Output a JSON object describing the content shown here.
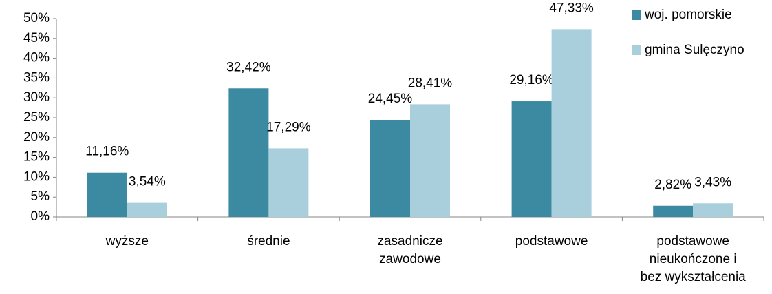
{
  "chart_data": {
    "type": "bar",
    "categories": [
      "wyższe",
      "średnie",
      "zasadnicze\nzawodowe",
      "podstawowe",
      "podstawowe\nnieukończone i\nbez wykształcenia"
    ],
    "series": [
      {
        "name": "woj. pomorskie",
        "color": "#3b8aa1",
        "values": [
          11.16,
          32.42,
          24.45,
          29.16,
          2.82
        ],
        "value_labels": [
          "11,16%",
          "32,42%",
          "24,45%",
          "29,16%",
          "2,82%"
        ]
      },
      {
        "name": "gmina Sulęczyno",
        "color": "#a9cfdc",
        "values": [
          3.54,
          17.29,
          28.41,
          47.33,
          3.43
        ],
        "value_labels": [
          "3,54%",
          "17,29%",
          "28,41%",
          "47,33%",
          "3,43%"
        ]
      }
    ],
    "ylim": [
      0,
      50
    ],
    "yticks": [
      {
        "value": 0,
        "label": "0%"
      },
      {
        "value": 5,
        "label": "5%"
      },
      {
        "value": 10,
        "label": "10%"
      },
      {
        "value": 15,
        "label": "15%"
      },
      {
        "value": 20,
        "label": "20%"
      },
      {
        "value": 25,
        "label": "25%"
      },
      {
        "value": 30,
        "label": "30%"
      },
      {
        "value": 35,
        "label": "35%"
      },
      {
        "value": 40,
        "label": "40%"
      },
      {
        "value": 45,
        "label": "45%"
      },
      {
        "value": 50,
        "label": "50%"
      }
    ],
    "legend": "top-right"
  }
}
